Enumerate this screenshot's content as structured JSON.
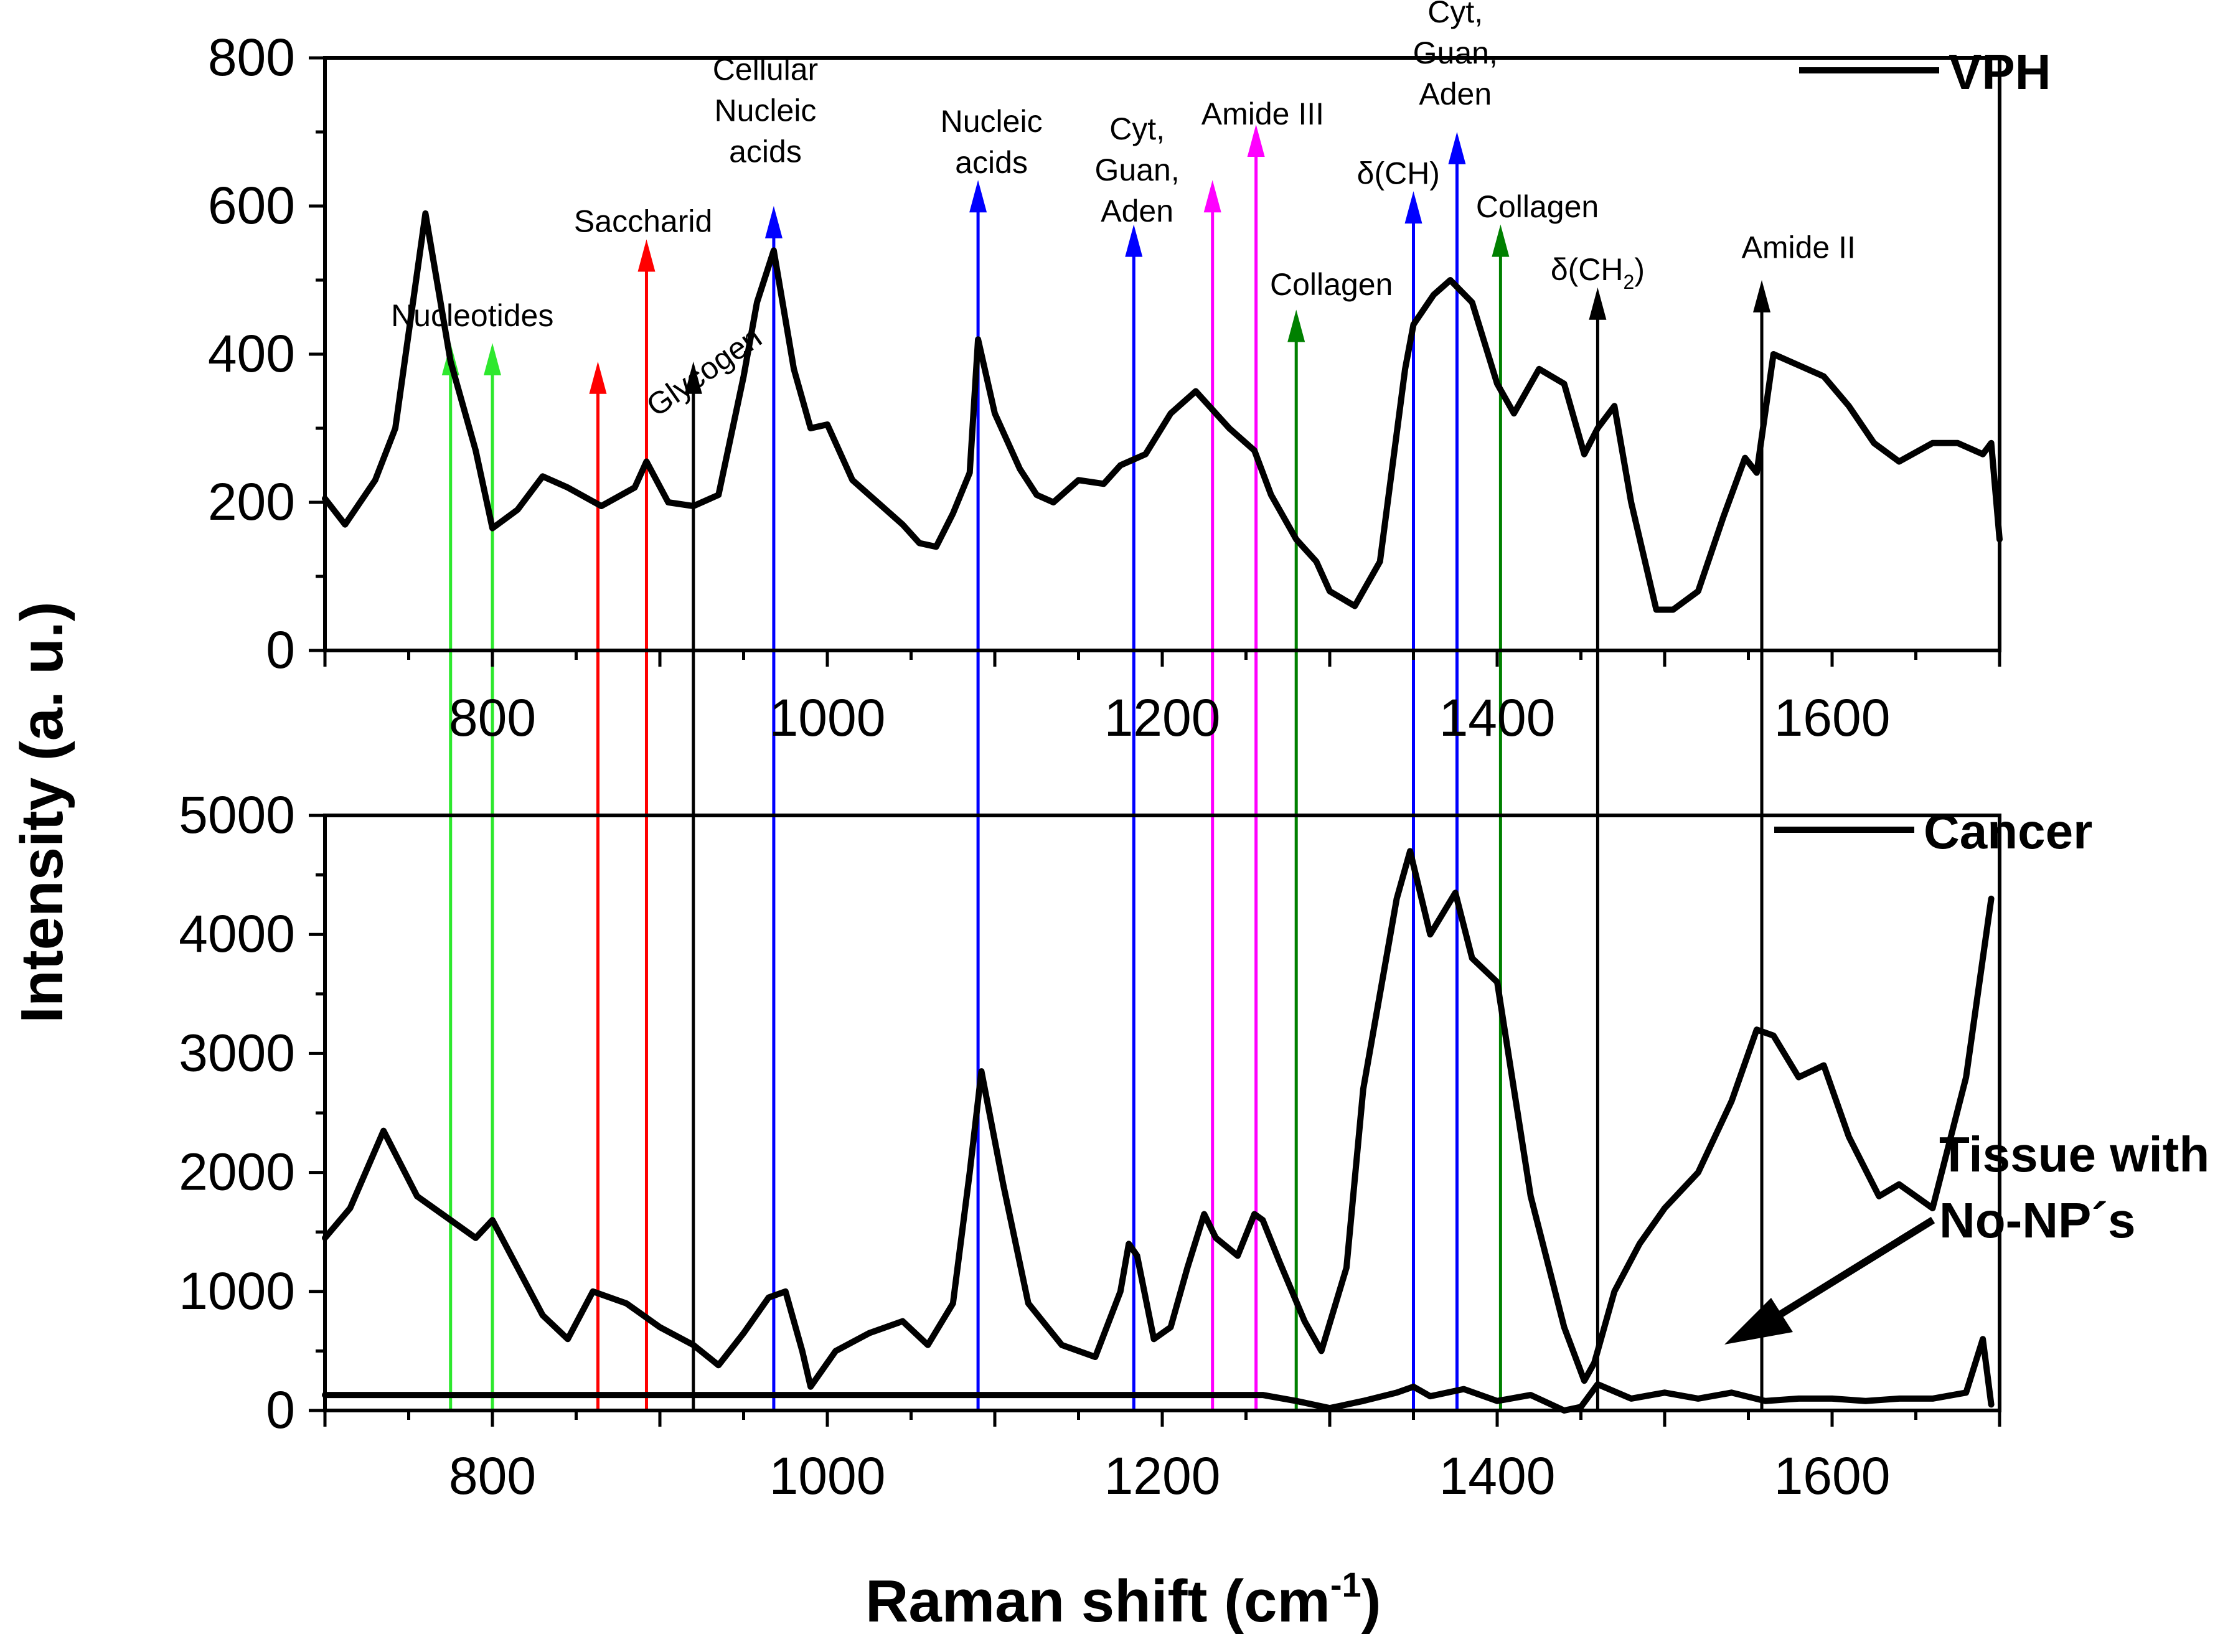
{
  "chart_data": {
    "type": "line",
    "ylabel": "Intensity (a. u.)",
    "xlabel": "Raman shift (cm",
    "xlabel_sup": "-1",
    "xlabel_close": ")",
    "xlim": [
      700,
      1700
    ],
    "panels": [
      {
        "id": "top",
        "ylim": [
          0,
          800
        ],
        "xticks": [
          800,
          1000,
          1200,
          1400,
          1600
        ],
        "yticks": [
          0,
          200,
          400,
          600,
          800
        ],
        "legend": "VPH",
        "series": [
          {
            "name": "VPH",
            "x": [
              700,
              712,
              730,
              742,
              760,
              775,
              790,
              800,
              815,
              830,
              845,
              865,
              885,
              892,
              905,
              920,
              935,
              950,
              958,
              968,
              980,
              990,
              1000,
              1015,
              1030,
              1045,
              1055,
              1065,
              1075,
              1085,
              1090,
              1100,
              1115,
              1125,
              1135,
              1150,
              1165,
              1175,
              1190,
              1205,
              1220,
              1240,
              1255,
              1265,
              1280,
              1292,
              1300,
              1315,
              1330,
              1345,
              1350,
              1362,
              1372,
              1385,
              1400,
              1410,
              1425,
              1440,
              1452,
              1460,
              1470,
              1480,
              1495,
              1505,
              1520,
              1535,
              1548,
              1555,
              1565,
              1580,
              1595,
              1610,
              1625,
              1640,
              1660,
              1675,
              1690,
              1695,
              1700
            ],
            "y": [
              205,
              170,
              230,
              300,
              590,
              390,
              270,
              165,
              190,
              235,
              220,
              195,
              220,
              255,
              200,
              195,
              210,
              370,
              470,
              540,
              380,
              300,
              305,
              230,
              200,
              170,
              145,
              140,
              185,
              240,
              420,
              320,
              245,
              210,
              200,
              230,
              225,
              250,
              265,
              320,
              350,
              300,
              270,
              210,
              150,
              120,
              80,
              60,
              120,
              380,
              440,
              480,
              500,
              470,
              360,
              320,
              380,
              360,
              265,
              300,
              330,
              200,
              55,
              55,
              80,
              180,
              260,
              240,
              400,
              385,
              370,
              330,
              280,
              255,
              280,
              280,
              265,
              280,
              150
            ]
          }
        ]
      },
      {
        "id": "bottom",
        "ylim": [
          0,
          5000
        ],
        "xticks": [
          800,
          1000,
          1200,
          1400,
          1600
        ],
        "yticks": [
          0,
          1000,
          2000,
          3000,
          4000,
          5000
        ],
        "legend": "Cancer",
        "series": [
          {
            "name": "Cancer",
            "x": [
              700,
              715,
              735,
              755,
              770,
              790,
              800,
              815,
              830,
              845,
              860,
              880,
              900,
              920,
              935,
              950,
              965,
              975,
              985,
              990,
              1005,
              1025,
              1045,
              1060,
              1075,
              1085,
              1092,
              1105,
              1120,
              1140,
              1160,
              1175,
              1180,
              1185,
              1195,
              1205,
              1215,
              1225,
              1232,
              1245,
              1255,
              1260,
              1270,
              1285,
              1295,
              1310,
              1320,
              1340,
              1348,
              1360,
              1375,
              1385,
              1400,
              1420,
              1440,
              1452,
              1458,
              1470,
              1485,
              1500,
              1520,
              1540,
              1555,
              1565,
              1580,
              1595,
              1610,
              1628,
              1640,
              1660,
              1680,
              1695
            ],
            "y": [
              1450,
              1700,
              2350,
              1800,
              1650,
              1450,
              1600,
              1200,
              800,
              600,
              1000,
              900,
              700,
              550,
              380,
              650,
              950,
              1000,
              500,
              200,
              500,
              650,
              750,
              550,
              900,
              2000,
              2850,
              1900,
              900,
              550,
              450,
              1000,
              1400,
              1300,
              600,
              700,
              1200,
              1650,
              1450,
              1300,
              1650,
              1600,
              1250,
              750,
              500,
              1200,
              2700,
              4300,
              4700,
              4000,
              4350,
              3800,
              3600,
              1800,
              700,
              250,
              400,
              1000,
              1400,
              1700,
              2000,
              2600,
              3200,
              3150,
              2800,
              2900,
              2300,
              1800,
              1900,
              1700,
              2800,
              4300
            ]
          },
          {
            "name": "Tissue with No-NP's",
            "x": [
              700,
              750,
              800,
              850,
              900,
              950,
              1000,
              1050,
              1100,
              1150,
              1200,
              1230,
              1260,
              1280,
              1300,
              1320,
              1340,
              1350,
              1360,
              1380,
              1400,
              1420,
              1440,
              1450,
              1460,
              1480,
              1500,
              1520,
              1540,
              1560,
              1580,
              1600,
              1620,
              1640,
              1660,
              1680,
              1690,
              1695
            ],
            "y": [
              130,
              130,
              130,
              130,
              130,
              130,
              130,
              130,
              130,
              130,
              130,
              130,
              130,
              80,
              20,
              80,
              150,
              200,
              120,
              180,
              80,
              130,
              0,
              30,
              220,
              100,
              150,
              100,
              150,
              80,
              100,
              100,
              80,
              100,
              100,
              150,
              600,
              50
            ]
          }
        ]
      }
    ],
    "annotation_label": "Tissue with\nNo-NP´s",
    "annotation_lines": [
      "Tissue with",
      "No-NP´s"
    ],
    "marker_lines": [
      {
        "x": 775,
        "color": "#2EE82E",
        "head": 405
      },
      {
        "x": 800,
        "color": "#2EE82E",
        "head": 405
      },
      {
        "x": 863,
        "color": "#FF0000",
        "head": 380
      },
      {
        "x": 892,
        "color": "#FF0000",
        "head": 545
      },
      {
        "x": 920,
        "color": "#000000",
        "head": 380
      },
      {
        "x": 968,
        "color": "#0000FF",
        "head": 590
      },
      {
        "x": 1090,
        "color": "#0000FF",
        "head": 625
      },
      {
        "x": 1183,
        "color": "#0000FF",
        "head": 565
      },
      {
        "x": 1230,
        "color": "#FF00FF",
        "head": 625
      },
      {
        "x": 1256,
        "color": "#FF00FF",
        "head": 700
      },
      {
        "x": 1280,
        "color": "#008000",
        "head": 450
      },
      {
        "x": 1350,
        "color": "#0000FF",
        "head": 610
      },
      {
        "x": 1376,
        "color": "#0000FF",
        "head": 690
      },
      {
        "x": 1402,
        "color": "#008000",
        "head": 565
      },
      {
        "x": 1460,
        "color": "#000000",
        "head": 480
      },
      {
        "x": 1558,
        "color": "#000000",
        "head": 490
      }
    ],
    "labels": [
      {
        "lines": [
          "Nucleotides"
        ],
        "x": 788,
        "y": 438
      },
      {
        "lines": [
          "Saccharid"
        ],
        "x": 890,
        "y": 565
      },
      {
        "lines": [
          "Glycogen"
        ],
        "x": 930,
        "y": 365,
        "rotate": -35
      },
      {
        "lines": [
          "Cellular",
          "Nucleic",
          "acids"
        ],
        "x": 963,
        "y": 770
      },
      {
        "lines": [
          "Nucleic",
          "acids"
        ],
        "x": 1098,
        "y": 700
      },
      {
        "lines": [
          "Cyt,",
          "Guan,",
          "Aden"
        ],
        "x": 1185,
        "y": 690
      },
      {
        "lines": [
          "Amide III"
        ],
        "x": 1260,
        "y": 710
      },
      {
        "lines": [
          "Collagen"
        ],
        "x": 1301,
        "y": 480
      },
      {
        "lines": [
          "δ(CH)"
        ],
        "x": 1341,
        "y": 630
      },
      {
        "lines": [
          "Cyt,",
          "Guan,",
          "Aden"
        ],
        "x": 1375,
        "y": 848
      },
      {
        "lines": [
          "Collagen"
        ],
        "x": 1424,
        "y": 585
      },
      {
        "lines": [
          "δ(CH",
          "2",
          ")"
        ],
        "x": 1460,
        "y": 500,
        "subscript": true
      },
      {
        "lines": [
          "Amide II"
        ],
        "x": 1580,
        "y": 530
      }
    ]
  }
}
